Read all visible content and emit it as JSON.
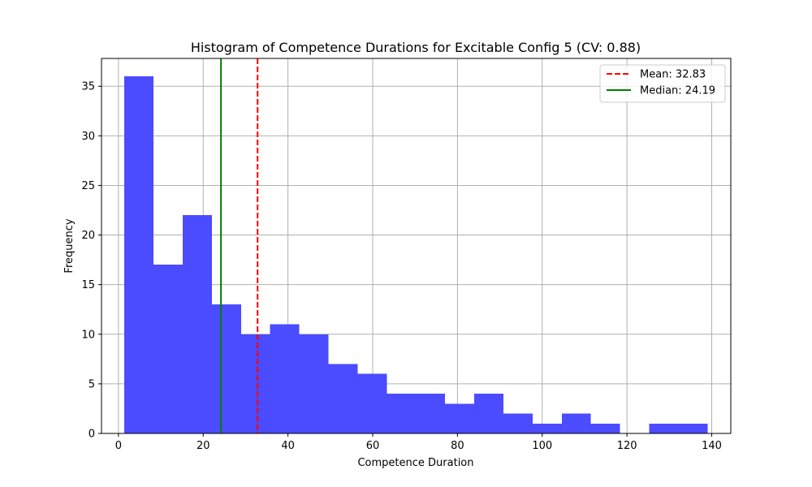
{
  "chart_data": {
    "type": "bar",
    "subtype": "histogram",
    "title": "Histogram of Competence Durations for Excitable Config 5 (CV: 0.88)",
    "xlabel": "Competence Duration",
    "ylabel": "Frequency",
    "xlim": [
      -4.0,
      144.5
    ],
    "ylim": [
      0,
      37.8
    ],
    "xticks": [
      0,
      20,
      40,
      60,
      80,
      100,
      120,
      140
    ],
    "yticks": [
      0,
      5,
      10,
      15,
      20,
      25,
      30,
      35
    ],
    "grid": true,
    "legend_position": "top-right",
    "bin_edges": [
      1.4,
      8.28,
      15.16,
      22.04,
      28.92,
      35.8,
      42.68,
      49.56,
      56.44,
      63.32,
      70.2,
      77.08,
      83.96,
      90.84,
      97.72,
      104.6,
      111.48,
      118.36,
      125.24,
      132.12,
      139.0
    ],
    "counts": [
      36,
      17,
      22,
      13,
      10,
      11,
      10,
      7,
      6,
      4,
      4,
      3,
      4,
      2,
      1,
      2,
      1,
      0,
      1,
      1
    ],
    "bar_color": "#4b4bff",
    "reference_lines": [
      {
        "label": "Mean: 32.83",
        "value": 32.83,
        "color": "#ff0000",
        "style": "dashed"
      },
      {
        "label": "Median: 24.19",
        "value": 24.19,
        "color": "#008000",
        "style": "solid"
      }
    ]
  }
}
